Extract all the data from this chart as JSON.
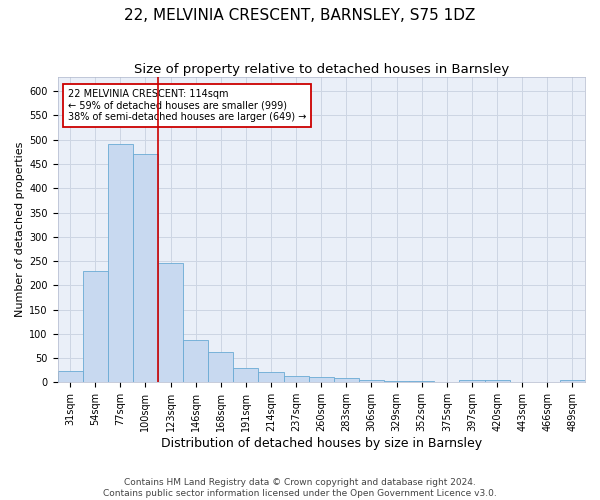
{
  "title": "22, MELVINIA CRESCENT, BARNSLEY, S75 1DZ",
  "subtitle": "Size of property relative to detached houses in Barnsley",
  "xlabel": "Distribution of detached houses by size in Barnsley",
  "ylabel": "Number of detached properties",
  "footer": "Contains HM Land Registry data © Crown copyright and database right 2024.\nContains public sector information licensed under the Open Government Licence v3.0.",
  "bin_labels": [
    "31sqm",
    "54sqm",
    "77sqm",
    "100sqm",
    "123sqm",
    "146sqm",
    "168sqm",
    "191sqm",
    "214sqm",
    "237sqm",
    "260sqm",
    "283sqm",
    "306sqm",
    "329sqm",
    "352sqm",
    "375sqm",
    "397sqm",
    "420sqm",
    "443sqm",
    "466sqm",
    "489sqm"
  ],
  "bar_values": [
    23,
    230,
    492,
    470,
    247,
    87,
    62,
    29,
    21,
    13,
    10,
    9,
    5,
    3,
    2,
    1,
    5,
    5,
    1,
    1,
    4
  ],
  "bar_color": "#c8d9f0",
  "bar_edge_color": "#6aaad4",
  "property_label": "22 MELVINIA CRESCENT: 114sqm",
  "annotation_line1": "← 59% of detached houses are smaller (999)",
  "annotation_line2": "38% of semi-detached houses are larger (649) →",
  "vline_color": "#cc0000",
  "vline_x": 3.5,
  "ylim": [
    0,
    630
  ],
  "yticks": [
    0,
    50,
    100,
    150,
    200,
    250,
    300,
    350,
    400,
    450,
    500,
    550,
    600
  ],
  "background_color": "#ffffff",
  "grid_color": "#cdd5e3",
  "annotation_box_color": "#ffffff",
  "annotation_box_edge": "#cc0000",
  "title_fontsize": 11,
  "subtitle_fontsize": 9.5,
  "xlabel_fontsize": 9,
  "ylabel_fontsize": 8,
  "tick_fontsize": 7,
  "annotation_fontsize": 7,
  "footer_fontsize": 6.5
}
